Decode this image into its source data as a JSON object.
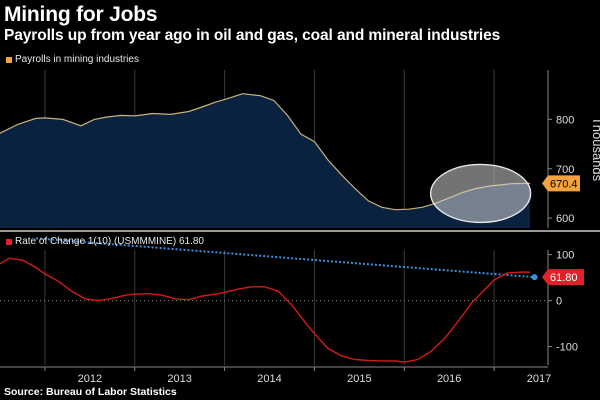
{
  "title": "Mining for Jobs",
  "subtitle": "Payrolls up from year ago in oil and gas, coal and mineral industries",
  "source": "Source: Bureau of Labor Statistics",
  "colors": {
    "background": "#000000",
    "area_fill": "#0b2140",
    "area_line": "#c8b27a",
    "roc_line": "#d21a1a",
    "marker_orange": "#f3a23c",
    "marker_red": "#e2202a",
    "dotted_blue": "#3d8fe0",
    "grid": "#3a3a3a",
    "separator": "#9a9a9a"
  },
  "chart_data": [
    {
      "type": "area",
      "legend": "Payrolls in mining industries",
      "ylabel": "Thousands",
      "ylim": [
        580,
        900
      ],
      "yticks": [
        600,
        700,
        800
      ],
      "last_value_label": "670.4",
      "highlight": "ellipse around the 2016–2017 rebound",
      "series": [
        {
          "x": [
            2011.5,
            2011.7,
            2011.9,
            2012.0,
            2012.2,
            2012.4,
            2012.55,
            2012.7,
            2012.85,
            2013.0,
            2013.2,
            2013.4,
            2013.6,
            2013.75,
            2013.9,
            2014.0,
            2014.2,
            2014.4,
            2014.55,
            2014.7,
            2014.85,
            2015.0,
            2015.15,
            2015.3,
            2015.45,
            2015.6,
            2015.75,
            2015.9,
            2016.05,
            2016.2,
            2016.35,
            2016.5,
            2016.65,
            2016.8,
            2016.95,
            2017.1,
            2017.2,
            2017.3,
            2017.4
          ],
          "values": [
            772,
            790,
            802,
            803,
            800,
            787,
            800,
            805,
            808,
            807,
            812,
            810,
            816,
            825,
            835,
            840,
            852,
            848,
            838,
            808,
            770,
            755,
            718,
            688,
            660,
            635,
            622,
            617,
            618,
            622,
            630,
            641,
            652,
            660,
            665,
            668,
            670,
            670.2,
            670.4
          ]
        }
      ]
    },
    {
      "type": "line",
      "legend": "Rate of Change 1(10) (USMMMINE) 61.80",
      "last_value_label": "61.80",
      "ylim": [
        -140,
        110
      ],
      "yticks": [
        100,
        0,
        -100
      ],
      "xticks": [
        "2012",
        "2013",
        "2014",
        "2015",
        "2016",
        "2017"
      ],
      "xlim": [
        2011.5,
        2017.6
      ],
      "series": [
        {
          "x": [
            2011.5,
            2011.6,
            2011.75,
            2011.9,
            2012.0,
            2012.15,
            2012.3,
            2012.45,
            2012.6,
            2012.75,
            2012.9,
            2013.0,
            2013.15,
            2013.3,
            2013.45,
            2013.6,
            2013.75,
            2013.9,
            2014.0,
            2014.15,
            2014.3,
            2014.45,
            2014.6,
            2014.75,
            2014.9,
            2015.0,
            2015.15,
            2015.3,
            2015.45,
            2015.6,
            2015.75,
            2015.9,
            2016.0,
            2016.15,
            2016.3,
            2016.45,
            2016.6,
            2016.75,
            2016.9,
            2017.0,
            2017.15,
            2017.3,
            2017.4
          ],
          "values": [
            80,
            92,
            88,
            72,
            58,
            42,
            20,
            4,
            0,
            5,
            12,
            14,
            15,
            12,
            4,
            2,
            10,
            14,
            18,
            25,
            30,
            30,
            20,
            -10,
            -48,
            -72,
            -104,
            -120,
            -128,
            -130,
            -131,
            -131,
            -134,
            -128,
            -110,
            -82,
            -45,
            -5,
            25,
            45,
            60,
            62,
            61.8
          ]
        }
      ],
      "reference_line": {
        "from": 92,
        "to": 61.8,
        "style": "dotted"
      }
    }
  ]
}
